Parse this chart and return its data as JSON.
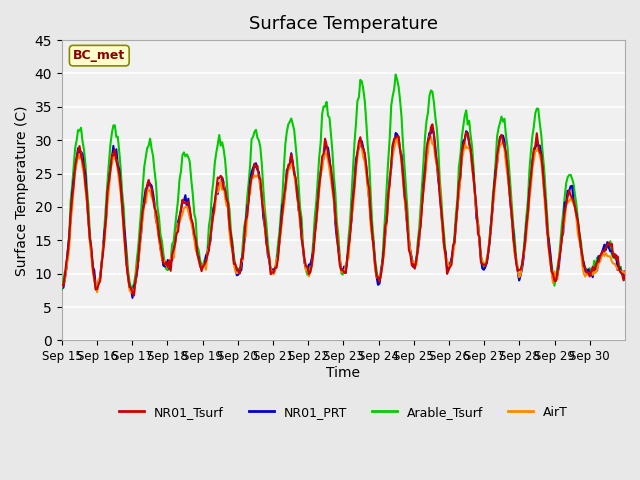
{
  "title": "Surface Temperature",
  "ylabel": "Surface Temperature (C)",
  "xlabel": "Time",
  "annotation": "BC_met",
  "ylim": [
    0,
    45
  ],
  "yticks": [
    0,
    5,
    10,
    15,
    20,
    25,
    30,
    35,
    40,
    45
  ],
  "xtick_labels": [
    "Sep 15",
    "Sep 16",
    "Sep 17",
    "Sep 18",
    "Sep 19",
    "Sep 20",
    "Sep 21",
    "Sep 22",
    "Sep 23",
    "Sep 24",
    "Sep 25",
    "Sep 26",
    "Sep 27",
    "Sep 28",
    "Sep 29",
    "Sep 30"
  ],
  "background_color": "#e8e8e8",
  "plot_bg_color": "#f0f0f0",
  "legend_labels": [
    "NR01_Tsurf",
    "NR01_PRT",
    "Arable_Tsurf",
    "AirT"
  ],
  "legend_colors": [
    "#cc0000",
    "#0000cc",
    "#00cc00",
    "#ff8800"
  ],
  "n_days": 16,
  "pts_per_day": 24,
  "day_mins": [
    8,
    8,
    7,
    11,
    11,
    10,
    10,
    10,
    10,
    9,
    11,
    11,
    11,
    10,
    9,
    10
  ],
  "day_maxs_nr01": [
    28,
    30,
    27,
    20,
    22,
    27,
    26,
    28,
    30,
    30,
    32,
    31,
    31,
    30,
    30,
    14
  ],
  "day_maxs_arable": [
    32,
    32,
    33,
    26,
    31,
    30,
    33,
    34,
    37,
    40,
    39,
    36,
    32,
    35,
    34,
    14
  ],
  "day_maxs_airt": [
    27,
    29,
    26,
    19,
    21,
    26,
    25,
    27,
    29,
    29,
    31,
    30,
    30,
    29,
    29,
    13
  ]
}
